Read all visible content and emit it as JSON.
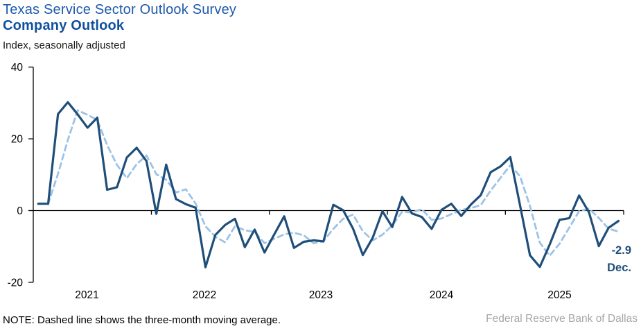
{
  "header": {
    "title": "Texas Service Sector Outlook Survey",
    "subtitle": "Company Outlook",
    "units_label": "Index, seasonally adjusted"
  },
  "footer": {
    "note": "NOTE: Dashed line shows the three-month moving average.",
    "source": "Federal Reserve Bank of Dallas"
  },
  "annotation": {
    "value": "-2.9",
    "period": "Dec."
  },
  "colors": {
    "line_solid": "#1F4E79",
    "line_dashed": "#9DC3E6",
    "title": "#1E5AAA",
    "subtitle": "#11509F",
    "source_gray": "#A6A6A6",
    "axis": "#000000"
  },
  "chart_data": {
    "type": "line",
    "title": "Company Outlook",
    "ylabel": "Index, seasonally adjusted",
    "ylim": [
      -20,
      40
    ],
    "y_ticks": [
      40,
      20,
      0,
      -20
    ],
    "grid": false,
    "legend": "none (dashed line explained in note)",
    "x_tick_labels": [
      "2021",
      "2022",
      "2023",
      "2024",
      "2025"
    ],
    "x": [
      "2021-01",
      "2021-02",
      "2021-03",
      "2021-04",
      "2021-05",
      "2021-06",
      "2021-07",
      "2021-08",
      "2021-09",
      "2021-10",
      "2021-11",
      "2021-12",
      "2022-01",
      "2022-02",
      "2022-03",
      "2022-04",
      "2022-05",
      "2022-06",
      "2022-07",
      "2022-08",
      "2022-09",
      "2022-10",
      "2022-11",
      "2022-12",
      "2023-01",
      "2023-02",
      "2023-03",
      "2023-04",
      "2023-05",
      "2023-06",
      "2023-07",
      "2023-08",
      "2023-09",
      "2023-10",
      "2023-11",
      "2023-12",
      "2024-01",
      "2024-02",
      "2024-03",
      "2024-04",
      "2024-05",
      "2024-06",
      "2024-07",
      "2024-08",
      "2024-09",
      "2024-10",
      "2024-11",
      "2024-12",
      "2025-01",
      "2025-02",
      "2025-03",
      "2025-04",
      "2025-05",
      "2025-06",
      "2025-07",
      "2025-08",
      "2025-09",
      "2025-10",
      "2025-11",
      "2025-12"
    ],
    "series": [
      {
        "name": "Company Outlook index (monthly)",
        "style": "solid",
        "color": "#1F4E79",
        "values": [
          1.9,
          1.9,
          26.9,
          30.2,
          26.8,
          23.1,
          25.9,
          5.8,
          6.5,
          14.8,
          17.5,
          13.8,
          -0.9,
          12.8,
          3.2,
          1.8,
          0.8,
          -15.8,
          -6.8,
          -4.0,
          -2.3,
          -10.2,
          -5.3,
          -11.7,
          -6.6,
          -1.6,
          -10.4,
          -8.7,
          -8.3,
          -8.6,
          1.6,
          0.1,
          -5.0,
          -12.4,
          -7.6,
          -0.2,
          -4.6,
          3.8,
          -0.8,
          -1.8,
          -5.1,
          0.2,
          1.9,
          -1.5,
          1.7,
          4.3,
          10.7,
          12.3,
          14.9,
          1.3,
          -12.5,
          -15.7,
          -9.5,
          -2.6,
          -2.1,
          4.2,
          -0.5,
          -9.9,
          -4.8,
          -2.9
        ]
      },
      {
        "name": "Three-month moving average",
        "style": "dashed",
        "color": "#9DC3E6",
        "derived": "trailing 3-month moving average of the monthly series"
      }
    ],
    "last_point": {
      "x": "2025-12",
      "value": -2.9,
      "label": "Dec."
    }
  }
}
